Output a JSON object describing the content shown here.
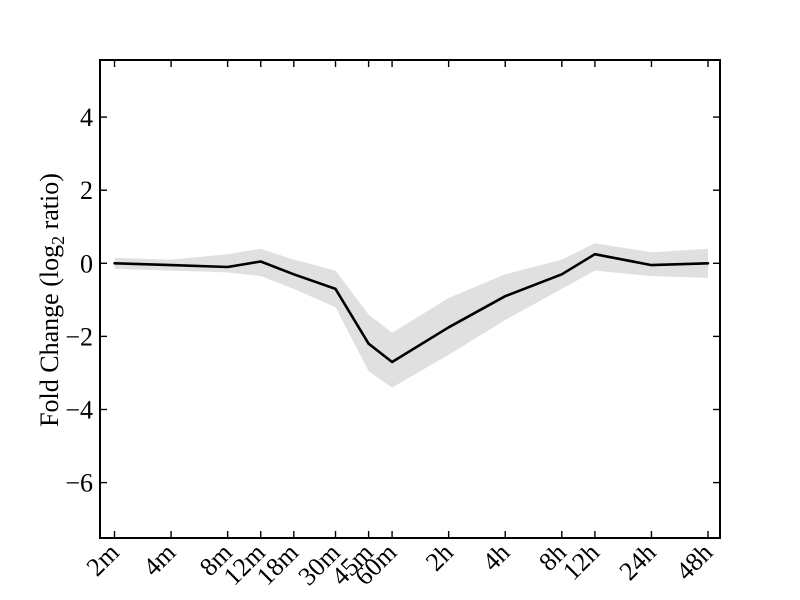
{
  "figure": {
    "background": "#ffffff",
    "axis_color": "#000000",
    "line_color": "#000000",
    "band_color": "#e0e0e0"
  },
  "chart_data": {
    "type": "line",
    "title": "",
    "xlabel": "",
    "ylabel": "Fold Change (log2 ratio)",
    "ylabel_parts": {
      "prefix": "Fold Change (log",
      "sub": "2",
      "suffix": " ratio)"
    },
    "categories": [
      "2m",
      "4m",
      "8m",
      "12m",
      "18m",
      "30m",
      "45m",
      "60m",
      "2h",
      "4h",
      "8h",
      "12h",
      "24h",
      "48h"
    ],
    "x_minutes": [
      2,
      4,
      8,
      12,
      18,
      30,
      45,
      60,
      120,
      240,
      480,
      720,
      1440,
      2880
    ],
    "x_scale": "log2",
    "series": [
      {
        "name": "fold-change",
        "values": [
          0.0,
          -0.05,
          -0.1,
          0.05,
          -0.3,
          -0.7,
          -2.2,
          -2.7,
          -1.75,
          -0.9,
          -0.3,
          0.25,
          -0.05,
          0.0
        ]
      }
    ],
    "band": {
      "upper": [
        0.15,
        0.1,
        0.25,
        0.4,
        0.1,
        -0.2,
        -1.4,
        -1.9,
        -0.95,
        -0.3,
        0.1,
        0.55,
        0.3,
        0.4
      ],
      "lower": [
        -0.15,
        -0.2,
        -0.25,
        -0.35,
        -0.7,
        -1.2,
        -2.95,
        -3.4,
        -2.5,
        -1.55,
        -0.7,
        -0.2,
        -0.35,
        -0.4
      ]
    },
    "yticks": [
      4,
      2,
      0,
      -2,
      -4,
      -6
    ],
    "ytick_labels": [
      "4",
      "2",
      "0",
      "−2",
      "−4",
      "−6"
    ],
    "ylim": [
      -7.5,
      5.55
    ],
    "grid": false,
    "legend": null
  }
}
